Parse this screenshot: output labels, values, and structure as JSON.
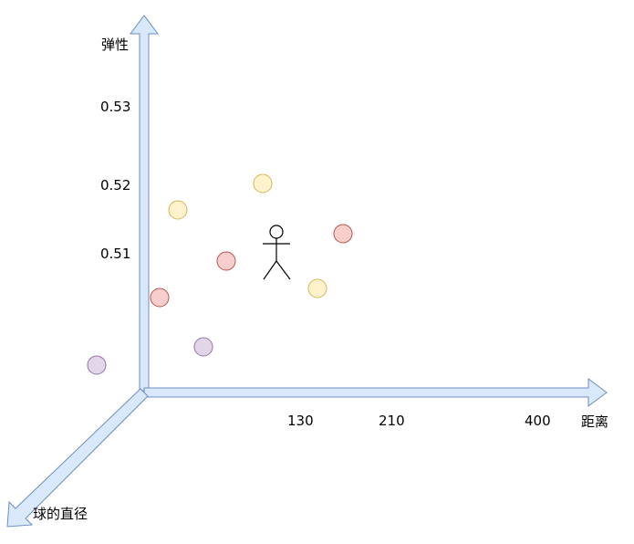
{
  "axes": {
    "y_label": "弹性",
    "x_label": "距离",
    "z_label": "球的直径",
    "y_ticks": [
      "0.53",
      "0.52",
      "0.51"
    ],
    "x_ticks": [
      "130",
      "210",
      "400"
    ]
  },
  "points": [
    {
      "color": "red"
    },
    {
      "color": "red"
    },
    {
      "color": "red"
    },
    {
      "color": "yellow"
    },
    {
      "color": "yellow"
    },
    {
      "color": "yellow"
    },
    {
      "color": "purple"
    },
    {
      "color": "purple"
    }
  ],
  "figure": {
    "icon": "stick-figure-icon"
  },
  "colors": {
    "arrow_fill": "#dae8fc",
    "arrow_stroke": "#6c8ebf",
    "red_fill": "#f8cecc",
    "red_stroke": "#b85450",
    "yellow_fill": "#fff2cc",
    "yellow_stroke": "#d6b656",
    "purple_fill": "#e1d5e7",
    "purple_stroke": "#9673a6"
  }
}
